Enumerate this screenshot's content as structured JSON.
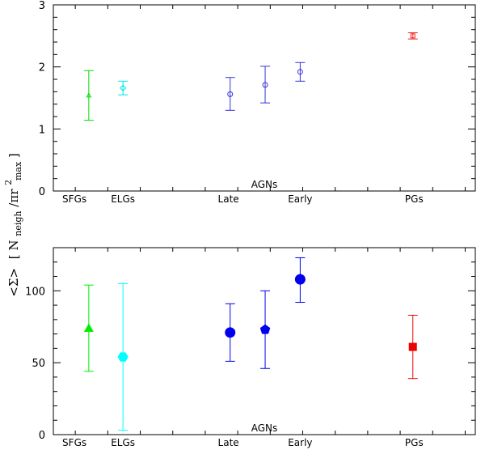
{
  "ylabel": {
    "sigma": "<Σ>",
    "open": "[ N",
    "sub_neigh": "neigh",
    "slash": "/πr",
    "sup2": "2",
    "sub_max": "max",
    "close": " ]"
  },
  "chart_data": [
    {
      "type": "scatter",
      "title": "",
      "xlabel": "",
      "ylabel": "<Σ> [N_neigh/πr^2_max]",
      "ylim": [
        0,
        3
      ],
      "yticks": [
        0,
        1,
        2,
        3
      ],
      "xlim": [
        0,
        1
      ],
      "grid": false,
      "category_labels": [
        {
          "text": "SFGs",
          "x": 0.05
        },
        {
          "text": "ELGs",
          "x": 0.165
        },
        {
          "text": "Late",
          "x": 0.415
        },
        {
          "text": "AGNs",
          "x": 0.5,
          "raised": true
        },
        {
          "text": "Early",
          "x": 0.585
        },
        {
          "text": "PGs",
          "x": 0.855
        }
      ],
      "points": [
        {
          "name": "SFGs",
          "x": 0.084,
          "y": 1.54,
          "yerr_low": 1.14,
          "yerr_high": 1.94,
          "marker": "triangle-open",
          "color": "#00dd00"
        },
        {
          "name": "ELGs",
          "x": 0.165,
          "y": 1.66,
          "yerr_low": 1.55,
          "yerr_high": 1.77,
          "marker": "diamond-open",
          "color": "#00e5e5"
        },
        {
          "name": "AGNs-1",
          "x": 0.419,
          "y": 1.56,
          "yerr_low": 1.3,
          "yerr_high": 1.83,
          "marker": "circle-open",
          "color": "#3333dd"
        },
        {
          "name": "AGNs-2",
          "x": 0.502,
          "y": 1.71,
          "yerr_low": 1.42,
          "yerr_high": 2.01,
          "marker": "circle-open",
          "color": "#3333dd"
        },
        {
          "name": "AGNs-3",
          "x": 0.585,
          "y": 1.92,
          "yerr_low": 1.77,
          "yerr_high": 2.07,
          "marker": "circle-open",
          "color": "#3333dd"
        },
        {
          "name": "PGs",
          "x": 0.852,
          "y": 2.5,
          "yerr_low": 2.45,
          "yerr_high": 2.55,
          "marker": "square-open",
          "color": "#ee2222"
        }
      ]
    },
    {
      "type": "scatter",
      "title": "",
      "xlabel": "",
      "ylabel": "<Σ> [N_neigh/πr^2_max]",
      "ylim": [
        0,
        130
      ],
      "yticks": [
        0,
        50,
        100
      ],
      "xlim": [
        0,
        1
      ],
      "grid": false,
      "category_labels": [
        {
          "text": "SFGs",
          "x": 0.05
        },
        {
          "text": "ELGs",
          "x": 0.165
        },
        {
          "text": "Late",
          "x": 0.415
        },
        {
          "text": "AGNs",
          "x": 0.5,
          "raised": true
        },
        {
          "text": "Early",
          "x": 0.585
        },
        {
          "text": "PGs",
          "x": 0.855
        }
      ],
      "points": [
        {
          "name": "SFGs",
          "x": 0.084,
          "y": 74,
          "yerr_low": 44,
          "yerr_high": 104,
          "marker": "triangle-filled",
          "color": "#00ee00"
        },
        {
          "name": "ELGs",
          "x": 0.165,
          "y": 54,
          "yerr_low": 3,
          "yerr_high": 105,
          "marker": "hexagon-filled",
          "color": "#00ffff"
        },
        {
          "name": "AGNs-1",
          "x": 0.419,
          "y": 71,
          "yerr_low": 51,
          "yerr_high": 91,
          "marker": "circle-filled",
          "color": "#0000ee"
        },
        {
          "name": "AGNs-2",
          "x": 0.502,
          "y": 73,
          "yerr_low": 46,
          "yerr_high": 100,
          "marker": "pentagon-filled",
          "color": "#0000ee"
        },
        {
          "name": "AGNs-3",
          "x": 0.585,
          "y": 108,
          "yerr_low": 92,
          "yerr_high": 123,
          "marker": "circle-filled",
          "color": "#0000ee"
        },
        {
          "name": "PGs",
          "x": 0.852,
          "y": 61,
          "yerr_low": 39,
          "yerr_high": 83,
          "marker": "square-filled",
          "color": "#ee0000"
        }
      ]
    }
  ]
}
